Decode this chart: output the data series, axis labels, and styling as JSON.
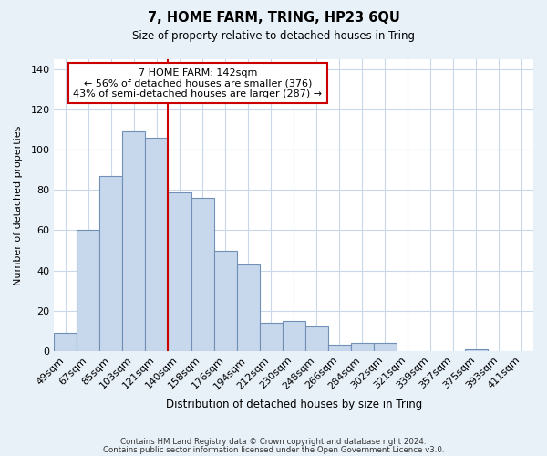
{
  "title": "7, HOME FARM, TRING, HP23 6QU",
  "subtitle": "Size of property relative to detached houses in Tring",
  "xlabel": "Distribution of detached houses by size in Tring",
  "ylabel": "Number of detached properties",
  "footnote1": "Contains HM Land Registry data © Crown copyright and database right 2024.",
  "footnote2": "Contains public sector information licensed under the Open Government Licence v3.0.",
  "bar_labels": [
    "49sqm",
    "67sqm",
    "85sqm",
    "103sqm",
    "121sqm",
    "140sqm",
    "158sqm",
    "176sqm",
    "194sqm",
    "212sqm",
    "230sqm",
    "248sqm",
    "266sqm",
    "284sqm",
    "302sqm",
    "321sqm",
    "339sqm",
    "357sqm",
    "375sqm",
    "393sqm",
    "411sqm"
  ],
  "bar_values": [
    9,
    60,
    87,
    109,
    106,
    79,
    76,
    50,
    43,
    14,
    15,
    12,
    3,
    4,
    4,
    0,
    0,
    0,
    1,
    0,
    0
  ],
  "bar_color": "#c8d8ec",
  "bar_edge_color": "#7090b8",
  "reference_idx": 5,
  "reference_line_color": "#cc0000",
  "annotation_text": "7 HOME FARM: 142sqm\n← 56% of detached houses are smaller (376)\n43% of semi-detached houses are larger (287) →",
  "annotation_box_color": "#ffffff",
  "annotation_box_edge": "#cc0000",
  "ylim": [
    0,
    145
  ],
  "yticks": [
    0,
    20,
    40,
    60,
    80,
    100,
    120,
    140
  ],
  "grid_color": "#c8d8e8",
  "background_color": "#e8f0f8",
  "plot_background": "#ffffff"
}
